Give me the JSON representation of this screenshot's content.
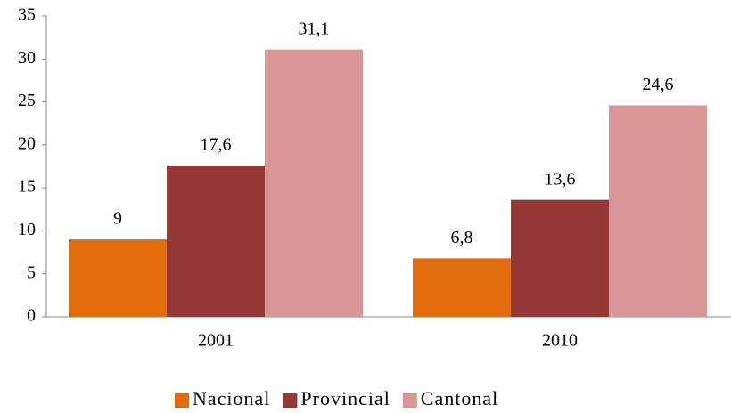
{
  "chart_data": {
    "type": "bar",
    "categories": [
      "2001",
      "2010"
    ],
    "series": [
      {
        "name": "Nacional",
        "color": "#e36c0a",
        "values": [
          9,
          6.8
        ],
        "value_labels": [
          "9",
          "6,8"
        ]
      },
      {
        "name": "Provincial",
        "color": "#953735",
        "values": [
          17.6,
          13.6
        ],
        "value_labels": [
          "17,6",
          "13,6"
        ]
      },
      {
        "name": "Cantonal",
        "color": "#d99694",
        "values": [
          31.1,
          24.6
        ],
        "value_labels": [
          "31,1",
          "24,6"
        ]
      }
    ],
    "ylim": [
      0,
      35
    ],
    "yticks": [
      0,
      5,
      10,
      15,
      20,
      25,
      30,
      35
    ],
    "grid": false
  }
}
